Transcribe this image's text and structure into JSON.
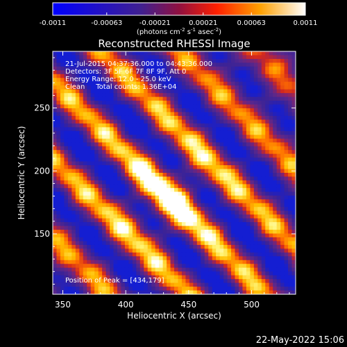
{
  "chart_data": {
    "type": "heatmap",
    "title": "Reconstructed RHESSI Image",
    "xlabel": "Heliocentric X (arcsec)",
    "ylabel": "Heliocentric Y (arcsec)",
    "xlim": [
      342,
      535
    ],
    "ylim": [
      102,
      295
    ],
    "x_ticks": [
      350,
      400,
      450,
      500
    ],
    "y_ticks": [
      150,
      200,
      250
    ],
    "colorbar": {
      "min": -0.0011,
      "max": 0.0011,
      "ticks": [
        "-0.0011",
        "-0.00063",
        "-0.00021",
        "0.00021",
        "0.00063",
        "0.0011"
      ],
      "label_main": "(photons cm",
      "label_exp1": "-2",
      "label_mid": " s",
      "label_exp2": "-1",
      "label_end": " asec",
      "label_exp3": "-2",
      "label_close": ")"
    },
    "annotations": [
      "21-Jul-2015 04:37:36.000 to 04:43:36.000",
      "Detectors: 3F 5F 6F 7F 8F 9F, Att 0",
      "Energy Range: 12.0 - 25.0 keV",
      "Clean     Total counts: 1.36E+04"
    ],
    "peak_label": "Position of Peak = [434,179]",
    "peak": [
      434,
      179
    ],
    "timestamp": "22-May-2022 15:06",
    "colormap": [
      "#000000",
      "#1010f0",
      "#3a1aa0",
      "#5a2a90",
      "#8a2a70",
      "#d03020",
      "#ff7800",
      "#ffc000",
      "#ffff80",
      "#ffffff"
    ]
  }
}
